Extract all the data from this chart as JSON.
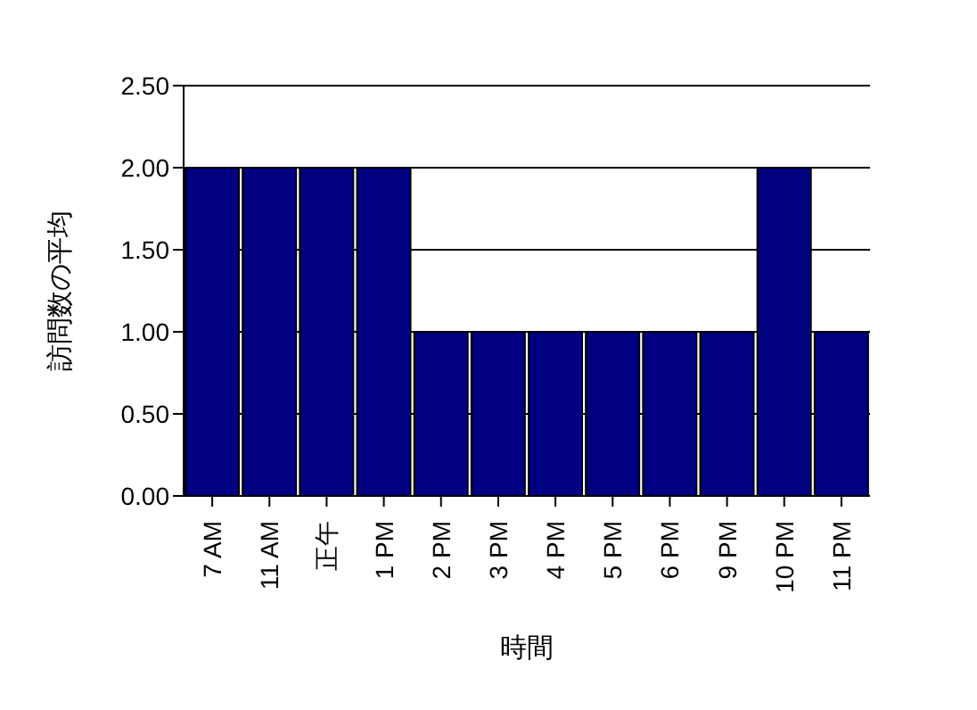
{
  "chart_data": {
    "type": "bar",
    "xlabel": "時間",
    "ylabel": "訪問数の平均",
    "categories": [
      "7 AM",
      "11 AM",
      "正午",
      "1 PM",
      "2 PM",
      "3 PM",
      "4 PM",
      "5 PM",
      "6 PM",
      "9 PM",
      "10 PM",
      "11 PM"
    ],
    "values": [
      2,
      2,
      2,
      2,
      1,
      1,
      1,
      1,
      1,
      1,
      2,
      1
    ],
    "color": "#000080",
    "ylim": [
      0,
      2.5
    ],
    "yticks": [
      {
        "value": 0,
        "label": "0.00"
      },
      {
        "value": 0.5,
        "label": "0.50"
      },
      {
        "value": 1,
        "label": "1.00"
      },
      {
        "value": 1.5,
        "label": "1.50"
      },
      {
        "value": 2,
        "label": "2.00"
      },
      {
        "value": 2.5,
        "label": "2.50"
      }
    ],
    "grid": "y"
  }
}
